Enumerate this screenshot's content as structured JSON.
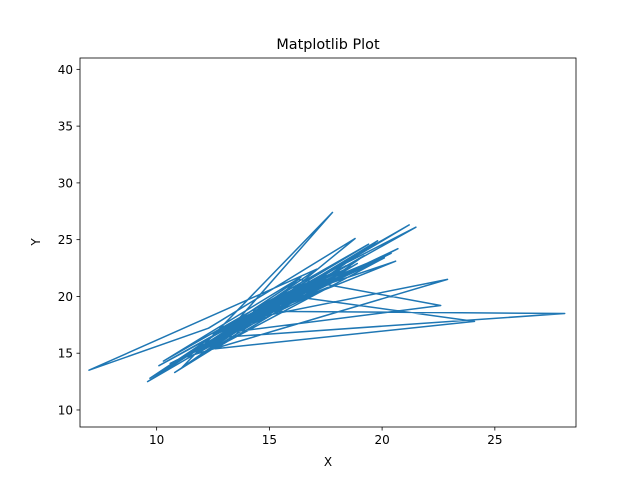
{
  "chart_data": {
    "type": "line",
    "title": "Matplotlib Plot",
    "xlabel": "X",
    "ylabel": "Y",
    "xlim": [
      6.6,
      28.6
    ],
    "ylim": [
      8.5,
      41
    ],
    "x_ticks": [
      10,
      15,
      20,
      25
    ],
    "y_ticks": [
      10,
      15,
      20,
      25,
      30,
      35,
      40
    ],
    "grid": false,
    "legend": "none",
    "line_color": "#1f77b4",
    "series": [
      {
        "x": [
          15.2,
          14.1,
          16.8,
          12.5,
          18.2,
          13.9,
          11.8,
          17.6,
          15.5,
          20.1,
          13.2,
          16.4,
          10.3,
          19.4,
          14.6,
          12.2,
          17.1,
          7.0,
          12.3,
          18.8,
          15.9,
          11.5,
          21.2,
          14.4,
          9.7,
          16.3,
          22.6,
          13.1,
          17.8,
          11.1,
          15.7,
          24.1,
          12.6,
          18.9,
          14.8,
          10.6,
          20.7,
          13.6,
          17.2,
          16.5,
          19.2,
          12.9,
          28.1,
          14.3,
          18.6,
          11.9,
          16.1,
          21.5,
          13.4,
          17.5,
          10.1,
          15.1,
          20.4,
          12.4,
          16.9,
          14.0,
          9.6,
          18.1,
          15.6,
          11.2,
          22.9,
          13.8,
          17.3,
          19.8,
          12.1,
          15.4,
          16.6,
          10.8,
          18.4,
          14.2,
          11.4,
          17.4,
          13.3,
          20.6,
          15.8,
          12.7,
          16.2,
          14.9,
          18.7,
          11.6
        ],
        "y": [
          19.5,
          18.2,
          21.3,
          16.7,
          22.1,
          17.4,
          15.2,
          20.8,
          19.1,
          23.4,
          16.1,
          21.7,
          14.3,
          24.6,
          18.9,
          15.8,
          22.4,
          13.5,
          17.2,
          25.1,
          20.4,
          14.9,
          26.3,
          18.6,
          12.8,
          21.5,
          19.2,
          16.8,
          27.4,
          13.7,
          20.1,
          17.8,
          15.4,
          22.9,
          18.3,
          14.1,
          24.2,
          17.5,
          21.1,
          19.8,
          23.6,
          16.4,
          18.5,
          18.7,
          22.6,
          15.1,
          20.6,
          26.1,
          17.1,
          21.9,
          13.9,
          19.4,
          23.8,
          15.9,
          21.2,
          18.1,
          12.5,
          22.3,
          20.2,
          14.6,
          21.5,
          17.9,
          21.4,
          24.9,
          15.6,
          19.7,
          20.9,
          13.3,
          22.7,
          18.4,
          14.8,
          21.8,
          17.3,
          23.1,
          19.9,
          16.2,
          20.5,
          18.8,
          22.2,
          15.3
        ]
      }
    ]
  }
}
